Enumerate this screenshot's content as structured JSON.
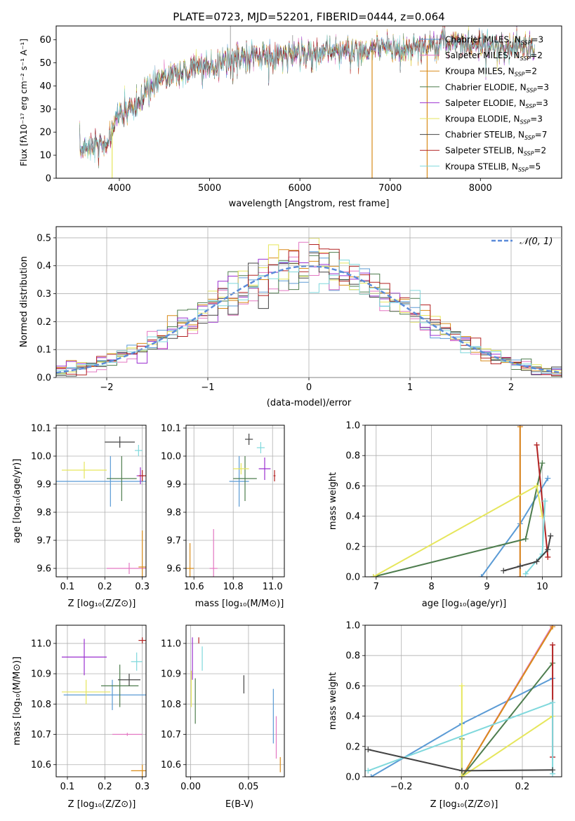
{
  "chart_data": [
    {
      "id": "spectrum",
      "type": "line",
      "title": "PLATE=0723, MJD=52201, FIBERID=0444, z=0.064",
      "xlabel": "wavelength [Angstrom, rest frame]",
      "ylabel": "Flux [fλ10⁻¹⁷ erg cm⁻² s⁻¹ A⁻¹]",
      "xlim": [
        3300,
        8900
      ],
      "ylim": [
        0,
        66
      ],
      "xticks": [
        4000,
        5000,
        6000,
        7000,
        8000
      ],
      "yticks": [
        0,
        10,
        20,
        30,
        40,
        50,
        60
      ],
      "grid": false,
      "legend_position": "right",
      "continuum": {
        "x": [
          3560,
          3700,
          3850,
          3950,
          4050,
          4200,
          4300,
          4500,
          4700,
          4900,
          5100,
          5300,
          5500,
          5700,
          5900,
          6100,
          6300,
          6500,
          6700,
          6900,
          7100,
          7300,
          7500,
          7700,
          7900,
          8100,
          8300,
          8500,
          8600
        ],
        "y": [
          12,
          15,
          13,
          25,
          29,
          31,
          38,
          44,
          46,
          48,
          50,
          52,
          52,
          53,
          54,
          54,
          55,
          55,
          55,
          56,
          56,
          57,
          58,
          59,
          58,
          57,
          57,
          56,
          56
        ]
      },
      "dropouts": [
        3920,
        6800,
        7410
      ],
      "series": [
        {
          "name": "Chabrier MILES, N_SSP=3",
          "color": "#5b9bd5"
        },
        {
          "name": "Salpeter MILES, N_SSP=2",
          "color": "#e377c2"
        },
        {
          "name": "Kroupa MILES, N_SSP=2",
          "color": "#d98c1a"
        },
        {
          "name": "Chabrier ELODIE, N_SSP=3",
          "color": "#4e7d4e"
        },
        {
          "name": "Salpeter ELODIE, N_SSP=3",
          "color": "#9b30d0"
        },
        {
          "name": "Kroupa ELODIE, N_SSP=3",
          "color": "#e6e65c"
        },
        {
          "name": "Chabrier STELIB, N_SSP=7",
          "color": "#444444"
        },
        {
          "name": "Salpeter STELIB, N_SSP=2",
          "color": "#b22222"
        },
        {
          "name": "Kroupa STELIB, N_SSP=5",
          "color": "#7fd8dc"
        }
      ]
    },
    {
      "id": "residuals",
      "type": "line",
      "xlabel": "(data-model)/error",
      "ylabel": "Normed distribution",
      "xlim": [
        -2.5,
        2.5
      ],
      "ylim": [
        0,
        0.54
      ],
      "xticks": [
        -2,
        -1,
        0,
        1,
        2
      ],
      "xtick_labels": [
        "−2",
        "−1",
        "0",
        "1",
        "2"
      ],
      "yticks": [
        0.0,
        0.1,
        0.2,
        0.3,
        0.4,
        0.5
      ],
      "grid": true,
      "legend_position": "top-right",
      "gaussian": {
        "name": "𝒩(0, 1)",
        "color": "#5b8bd9",
        "mean": 0,
        "sigma": 1
      },
      "hist_bin_width": 0.1
    },
    {
      "id": "age-vs-Z",
      "type": "scatter",
      "xlabel": "Z [log₁₀(Z/Z⊙)]",
      "ylabel": "age  [log₁₀(age/yr)]",
      "xlim": [
        0.07,
        0.31
      ],
      "ylim": [
        9.57,
        10.11
      ],
      "xticks": [
        0.1,
        0.2,
        0.3
      ],
      "yticks": [
        9.6,
        9.7,
        9.8,
        9.9,
        10.0,
        10.1
      ],
      "grid": true,
      "points": [
        {
          "color": "#5b9bd5",
          "x": 0.215,
          "y": 9.91,
          "xerr": 0.2,
          "yerr": 0.09
        },
        {
          "color": "#e377c2",
          "x": 0.265,
          "y": 9.6,
          "xerr": 0.06,
          "yerr": 0.02
        },
        {
          "color": "#d98c1a",
          "x": 0.3,
          "y": 9.605,
          "xerr": 0.01,
          "yerr": 0.13
        },
        {
          "color": "#4e7d4e",
          "x": 0.245,
          "y": 9.92,
          "xerr": 0.04,
          "yerr": 0.08
        },
        {
          "color": "#9b30d0",
          "x": 0.295,
          "y": 9.93,
          "xerr": 0.01,
          "yerr": 0.03
        },
        {
          "color": "#e6e65c",
          "x": 0.145,
          "y": 9.95,
          "xerr": 0.06,
          "yerr": 0.03
        },
        {
          "color": "#444444",
          "x": 0.24,
          "y": 10.05,
          "xerr": 0.04,
          "yerr": 0.02
        },
        {
          "color": "#b22222",
          "x": 0.3,
          "y": 9.93,
          "xerr": 0.01,
          "yerr": 0.02
        },
        {
          "color": "#7fd8dc",
          "x": 0.29,
          "y": 10.02,
          "xerr": 0.01,
          "yerr": 0.02
        }
      ]
    },
    {
      "id": "age-vs-mass",
      "type": "scatter",
      "xlabel": "mass [log₁₀(M/M⊙)]",
      "xlim": [
        10.56,
        11.06
      ],
      "ylim": [
        9.57,
        10.11
      ],
      "xticks": [
        10.6,
        10.8,
        11.0
      ],
      "yticks": [
        9.6,
        9.7,
        9.8,
        9.9,
        10.0,
        10.1
      ],
      "grid": true,
      "points": [
        {
          "color": "#5b9bd5",
          "x": 10.83,
          "y": 9.91,
          "xerr": 0.05,
          "yerr": 0.09
        },
        {
          "color": "#e377c2",
          "x": 10.7,
          "y": 9.6,
          "xerr": 0.02,
          "yerr": 0.14
        },
        {
          "color": "#d98c1a",
          "x": 10.58,
          "y": 9.6,
          "xerr": 0.02,
          "yerr": 0.09
        },
        {
          "color": "#4e7d4e",
          "x": 10.86,
          "y": 9.92,
          "xerr": 0.06,
          "yerr": 0.08
        },
        {
          "color": "#9b30d0",
          "x": 10.96,
          "y": 9.955,
          "xerr": 0.03,
          "yerr": 0.04
        },
        {
          "color": "#e6e65c",
          "x": 10.84,
          "y": 9.955,
          "xerr": 0.04,
          "yerr": 0.02
        },
        {
          "color": "#444444",
          "x": 10.88,
          "y": 10.06,
          "xerr": 0.02,
          "yerr": 0.02
        },
        {
          "color": "#b22222",
          "x": 11.01,
          "y": 9.93,
          "xerr": 0.005,
          "yerr": 0.02
        },
        {
          "color": "#7fd8dc",
          "x": 10.94,
          "y": 10.03,
          "xerr": 0.02,
          "yerr": 0.02
        }
      ]
    },
    {
      "id": "weight-vs-age",
      "type": "line",
      "xlabel": "age  [log₁₀(age/yr)]",
      "ylabel": "mass weight",
      "xlim": [
        6.8,
        10.35
      ],
      "ylim": [
        0,
        1.0
      ],
      "xticks": [
        7,
        8,
        9,
        10
      ],
      "yticks": [
        0.0,
        0.2,
        0.4,
        0.6,
        0.8,
        1.0
      ],
      "grid": true,
      "series": [
        {
          "color": "#5b9bd5",
          "points": [
            [
              8.9,
              0.0
            ],
            [
              9.6,
              0.35
            ],
            [
              10.1,
              0.65
            ]
          ]
        },
        {
          "color": "#e377c2",
          "points": [
            [
              9.6,
              0.0
            ],
            [
              9.6,
              1.0
            ]
          ]
        },
        {
          "color": "#d98c1a",
          "points": [
            [
              9.6,
              0.0
            ],
            [
              9.6,
              0.99
            ]
          ]
        },
        {
          "color": "#4e7d4e",
          "points": [
            [
              6.95,
              0.0
            ],
            [
              9.7,
              0.25
            ],
            [
              10.0,
              0.75
            ]
          ]
        },
        {
          "color": "#e6e65c",
          "points": [
            [
              6.95,
              0.0
            ],
            [
              9.9,
              0.6
            ],
            [
              10.0,
              0.4
            ]
          ]
        },
        {
          "color": "#b22222",
          "points": [
            [
              9.9,
              0.87
            ],
            [
              10.1,
              0.13
            ]
          ]
        },
        {
          "color": "#7fd8dc",
          "points": [
            [
              9.7,
              0.02
            ],
            [
              10.0,
              0.15
            ],
            [
              10.05,
              0.5
            ]
          ]
        },
        {
          "color": "#444444",
          "points": [
            [
              9.3,
              0.04
            ],
            [
              9.6,
              0.07
            ],
            [
              9.9,
              0.1
            ],
            [
              10.1,
              0.18
            ],
            [
              10.15,
              0.27
            ]
          ]
        }
      ]
    },
    {
      "id": "mass-vs-Z",
      "type": "scatter",
      "xlabel": "Z [log₁₀(Z/Z⊙)]",
      "ylabel": "mass [log₁₀(M/M⊙)]",
      "xlim": [
        0.07,
        0.31
      ],
      "ylim": [
        10.56,
        11.06
      ],
      "xticks": [
        0.1,
        0.2,
        0.3
      ],
      "yticks": [
        10.6,
        10.7,
        10.8,
        10.9,
        11.0
      ],
      "grid": true,
      "points": [
        {
          "color": "#5b9bd5",
          "x": 0.22,
          "y": 10.83,
          "xerr": 0.13,
          "yerr": 0.05
        },
        {
          "color": "#e377c2",
          "x": 0.26,
          "y": 10.7,
          "xerr": 0.04,
          "yerr": 0.005
        },
        {
          "color": "#d98c1a",
          "x": 0.3,
          "y": 10.58,
          "xerr": 0.03,
          "yerr": 0.02
        },
        {
          "color": "#4e7d4e",
          "x": 0.24,
          "y": 10.86,
          "xerr": 0.05,
          "yerr": 0.07
        },
        {
          "color": "#9b30d0",
          "x": 0.145,
          "y": 10.955,
          "xerr": 0.06,
          "yerr": 0.06
        },
        {
          "color": "#e6e65c",
          "x": 0.15,
          "y": 10.84,
          "xerr": 0.065,
          "yerr": 0.04
        },
        {
          "color": "#444444",
          "x": 0.265,
          "y": 10.88,
          "xerr": 0.03,
          "yerr": 0.02
        },
        {
          "color": "#b22222",
          "x": 0.3,
          "y": 11.01,
          "xerr": 0.01,
          "yerr": 0.01
        },
        {
          "color": "#7fd8dc",
          "x": 0.285,
          "y": 10.94,
          "xerr": 0.015,
          "yerr": 0.03
        }
      ]
    },
    {
      "id": "mass-vs-ebv",
      "type": "scatter",
      "xlabel": "E(B-V)",
      "xlim": [
        -0.004,
        0.081
      ],
      "ylim": [
        10.56,
        11.06
      ],
      "xticks": [
        0.0,
        0.05
      ],
      "xtick_labels": [
        "0.00",
        "0.05"
      ],
      "yticks": [
        10.6,
        10.7,
        10.8,
        10.9,
        11.0
      ],
      "grid": true,
      "points": [
        {
          "color": "#5b9bd5",
          "x": 0.0715,
          "y": 10.76,
          "xerr": 0.0,
          "yerr": 0.09
        },
        {
          "color": "#e377c2",
          "x": 0.074,
          "y": 10.69,
          "xerr": 0.0,
          "yerr": 0.07
        },
        {
          "color": "#d98c1a",
          "x": 0.0775,
          "y": 10.6,
          "xerr": 0.0,
          "yerr": 0.025
        },
        {
          "color": "#4e7d4e",
          "x": 0.004,
          "y": 10.81,
          "xerr": 0.0,
          "yerr": 0.075
        },
        {
          "color": "#9b30d0",
          "x": 0.0015,
          "y": 10.95,
          "xerr": 0.0,
          "yerr": 0.07
        },
        {
          "color": "#e6e65c",
          "x": 0.0005,
          "y": 10.85,
          "xerr": 0.0,
          "yerr": 0.06
        },
        {
          "color": "#444444",
          "x": 0.046,
          "y": 10.865,
          "xerr": 0.0,
          "yerr": 0.03
        },
        {
          "color": "#b22222",
          "x": 0.007,
          "y": 11.01,
          "xerr": 0.0,
          "yerr": 0.01
        },
        {
          "color": "#7fd8dc",
          "x": 0.01,
          "y": 10.95,
          "xerr": 0.0,
          "yerr": 0.04
        }
      ]
    },
    {
      "id": "weight-vs-Z",
      "type": "line",
      "xlabel": "Z [log₁₀(Z/Z⊙)]",
      "ylabel": "mass weight",
      "xlim": [
        -0.32,
        0.33
      ],
      "ylim": [
        0,
        1.0
      ],
      "xticks": [
        -0.2,
        0.0,
        0.2
      ],
      "xtick_labels": [
        "−0.2",
        "0.0",
        "0.2"
      ],
      "yticks": [
        0.0,
        0.2,
        0.4,
        0.6,
        0.8,
        1.0
      ],
      "grid": true,
      "series": [
        {
          "color": "#5b9bd5",
          "points": [
            [
              -0.3,
              0.0
            ],
            [
              0.0,
              0.35
            ],
            [
              0.3,
              0.65
            ]
          ]
        },
        {
          "color": "#e377c2",
          "points": [
            [
              0.0,
              0.0
            ],
            [
              0.3,
              1.0
            ]
          ]
        },
        {
          "color": "#d98c1a",
          "points": [
            [
              0.0,
              0.0
            ],
            [
              0.3,
              0.99
            ]
          ]
        },
        {
          "color": "#4e7d4e",
          "points": [
            [
              0.0,
              0.25
            ],
            [
              0.0,
              0.0
            ],
            [
              0.3,
              0.75
            ]
          ]
        },
        {
          "color": "#e6e65c",
          "points": [
            [
              0.0,
              0.6
            ],
            [
              0.0,
              0.0
            ],
            [
              0.3,
              0.4
            ]
          ]
        },
        {
          "color": "#b22222",
          "points": [
            [
              0.3,
              0.87
            ],
            [
              0.3,
              0.13
            ]
          ]
        },
        {
          "color": "#7fd8dc",
          "points": [
            [
              -0.31,
              0.04
            ],
            [
              0.3,
              0.49
            ],
            [
              0.3,
              0.02
            ]
          ]
        },
        {
          "color": "#444444",
          "points": [
            [
              -0.31,
              0.18
            ],
            [
              0.0,
              0.04
            ],
            [
              0.3,
              0.045
            ]
          ]
        }
      ]
    }
  ]
}
